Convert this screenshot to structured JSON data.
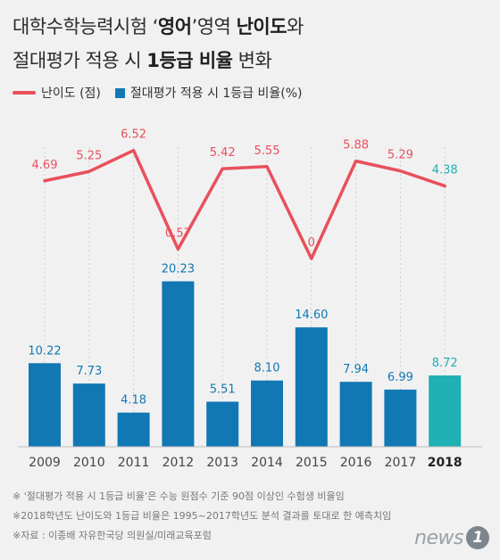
{
  "title": {
    "line1_pre": "대학수학능력시험 ‘",
    "line1_bold1": "영어",
    "line1_mid": "’영역 ",
    "line1_bold2": "난이도",
    "line1_post": "와",
    "line2_pre": "절대평가 적용 시 ",
    "line2_bold": "1등급 비율",
    "line2_post": " 변화"
  },
  "chart_data": {
    "type": "bar",
    "categories": [
      "2009",
      "2010",
      "2011",
      "2012",
      "2013",
      "2014",
      "2015",
      "2016",
      "2017",
      "2018"
    ],
    "series": [
      {
        "name": "난이도 (점)",
        "type": "line",
        "values": [
          4.69,
          5.25,
          6.52,
          0.57,
          5.42,
          5.55,
          0,
          5.88,
          5.29,
          4.38
        ],
        "labels": [
          "4.69",
          "5.25",
          "6.52",
          "0.57",
          "5.42",
          "5.55",
          "0",
          "5.88",
          "5.29",
          "4.38"
        ]
      },
      {
        "name": "절대평가 적용 시 1등급 비율(%)",
        "type": "bar",
        "values": [
          10.22,
          7.73,
          4.18,
          20.23,
          5.51,
          8.1,
          14.6,
          7.94,
          6.99,
          8.72
        ],
        "labels": [
          "10.22",
          "7.73",
          "4.18",
          "20.23",
          "5.51",
          "8.10",
          "14.60",
          "7.94",
          "6.99",
          "8.72"
        ]
      }
    ],
    "highlight_category": "2018",
    "colors": {
      "line": "#e8505b",
      "bar": "#1178b4",
      "bar_highlight": "#1fb0b3",
      "line_label": "#e8505b",
      "line_label_highlight": "#1fb0b3",
      "bar_label": "#1178b4",
      "bar_label_highlight": "#1fb0b3"
    },
    "grid": "vertical-dashed",
    "legend_position": "top-left"
  },
  "notes": [
    "※ '절대평가 적용 시 1등급 비율'은 수능 원점수 기준 90점 이상인 수험생 비율임",
    "※2018학년도 난이도와 1등급 비율은 1995~2017학년도 분석 결과를 토대로 한 예측치임",
    "※자료 : 이종배 자유한국당 의원실/미래교육포럼"
  ],
  "logo": {
    "text": "news",
    "mark": "1"
  }
}
